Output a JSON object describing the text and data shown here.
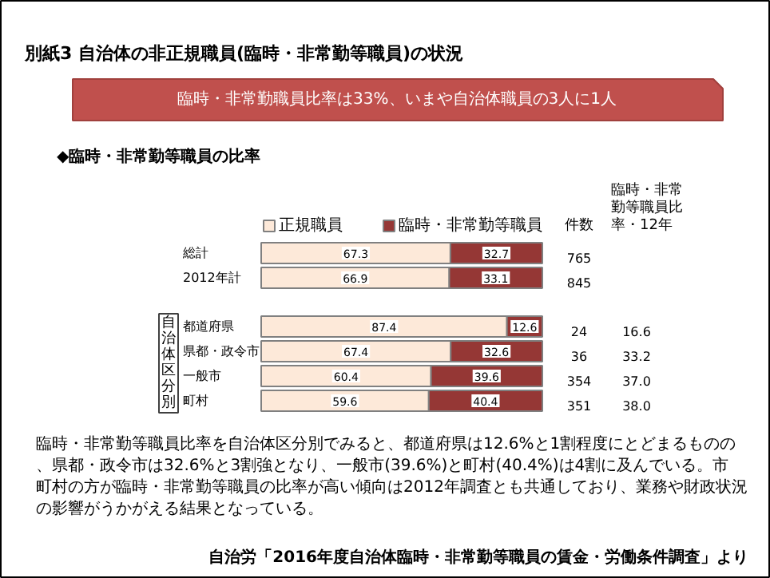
{
  "chart_data": {
    "type": "bar",
    "orientation": "horizontal",
    "stacked": true,
    "title": "別紙3 自治体の非正規職員(臨時・非常勤等職員)の状況",
    "subtitle": "臨時・非常勤職員比率は33%、いまや自治体職員の3人に1人",
    "categories": [
      "総計",
      "2012年計",
      "都道府県",
      "県都・政令市",
      "一般市",
      "町村"
    ],
    "series": [
      {
        "name": "正規職員",
        "color": "#fde9d9",
        "values": [
          67.3,
          66.9,
          87.4,
          67.4,
          60.4,
          59.6
        ]
      },
      {
        "name": "臨時・非常勤等職員",
        "color": "#953735",
        "values": [
          32.7,
          33.1,
          12.6,
          32.6,
          39.6,
          40.4
        ]
      }
    ],
    "data_labels": true,
    "legend": "top",
    "tick_labels": false,
    "grid": false,
    "annotations": [
      "◆臨時・非常勤等職員の比率",
      "件数",
      "臨時・非常勤等職員比率・12年",
      "自治体区分別",
      "臨時・非常勤等職員比率を自治体区分別でみると、都道府県は12.6%と1割程度にとどまるものの、県都・政令市は32.6%と3割強となり、一般市(39.6%)と町村(40.4%)は4割に及んでいる。市町村の方が臨時・非常勤等職員の比率が高い傾向は2012年調査とも共通しており、業務や財政状況の影響がうかがえる結果となっている。",
      "自治労「2016年度自治体臨時・非常勤等職員の賃金・労働条件調査」より",
      "765",
      "845",
      "24",
      "36",
      "354",
      "351",
      "16.6",
      "33.2",
      "37.0",
      "38.0"
    ]
  }
}
